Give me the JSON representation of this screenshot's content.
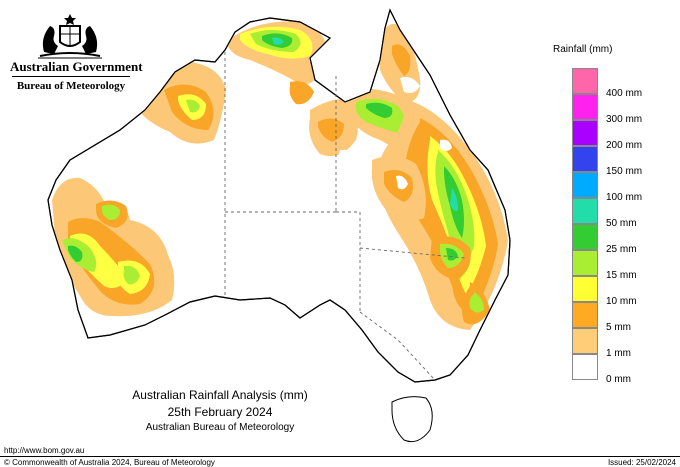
{
  "header": {
    "government": "Australian Government",
    "bureau": "Bureau of Meteorology"
  },
  "legend": {
    "title": "Rainfall (mm)",
    "items": [
      {
        "label": "",
        "color": "#ff66aa"
      },
      {
        "label": "400 mm",
        "color": "#ff22ee"
      },
      {
        "label": "300 mm",
        "color": "#aa00ff"
      },
      {
        "label": "200 mm",
        "color": "#3344ee"
      },
      {
        "label": "150 mm",
        "color": "#00aaff"
      },
      {
        "label": "100 mm",
        "color": "#22ddaa"
      },
      {
        "label": "50 mm",
        "color": "#33cc33"
      },
      {
        "label": "25 mm",
        "color": "#aaee33"
      },
      {
        "label": "15 mm",
        "color": "#ffff33"
      },
      {
        "label": "10 mm",
        "color": "#ffaa22"
      },
      {
        "label": "5 mm",
        "color": "#ffcc77"
      },
      {
        "label": "1 mm",
        "color": "#ffffff"
      },
      {
        "label": "0 mm",
        "color": ""
      }
    ]
  },
  "caption": {
    "title": "Australian Rainfall Analysis (mm)",
    "date": "25th February 2024",
    "source": "Australian Bureau of Meteorology"
  },
  "footer": {
    "url": "http://www.bom.gov.au",
    "copyright": "© Commonwealth of Australia 2024, Bureau of Meteorology",
    "issued": "Issued: 25/02/2024"
  },
  "colors": {
    "light_orange": "#fcc878",
    "orange": "#f9a528",
    "yellow": "#ffff44",
    "lime": "#aaee33",
    "green": "#33cc33",
    "teal": "#22ddaa"
  }
}
